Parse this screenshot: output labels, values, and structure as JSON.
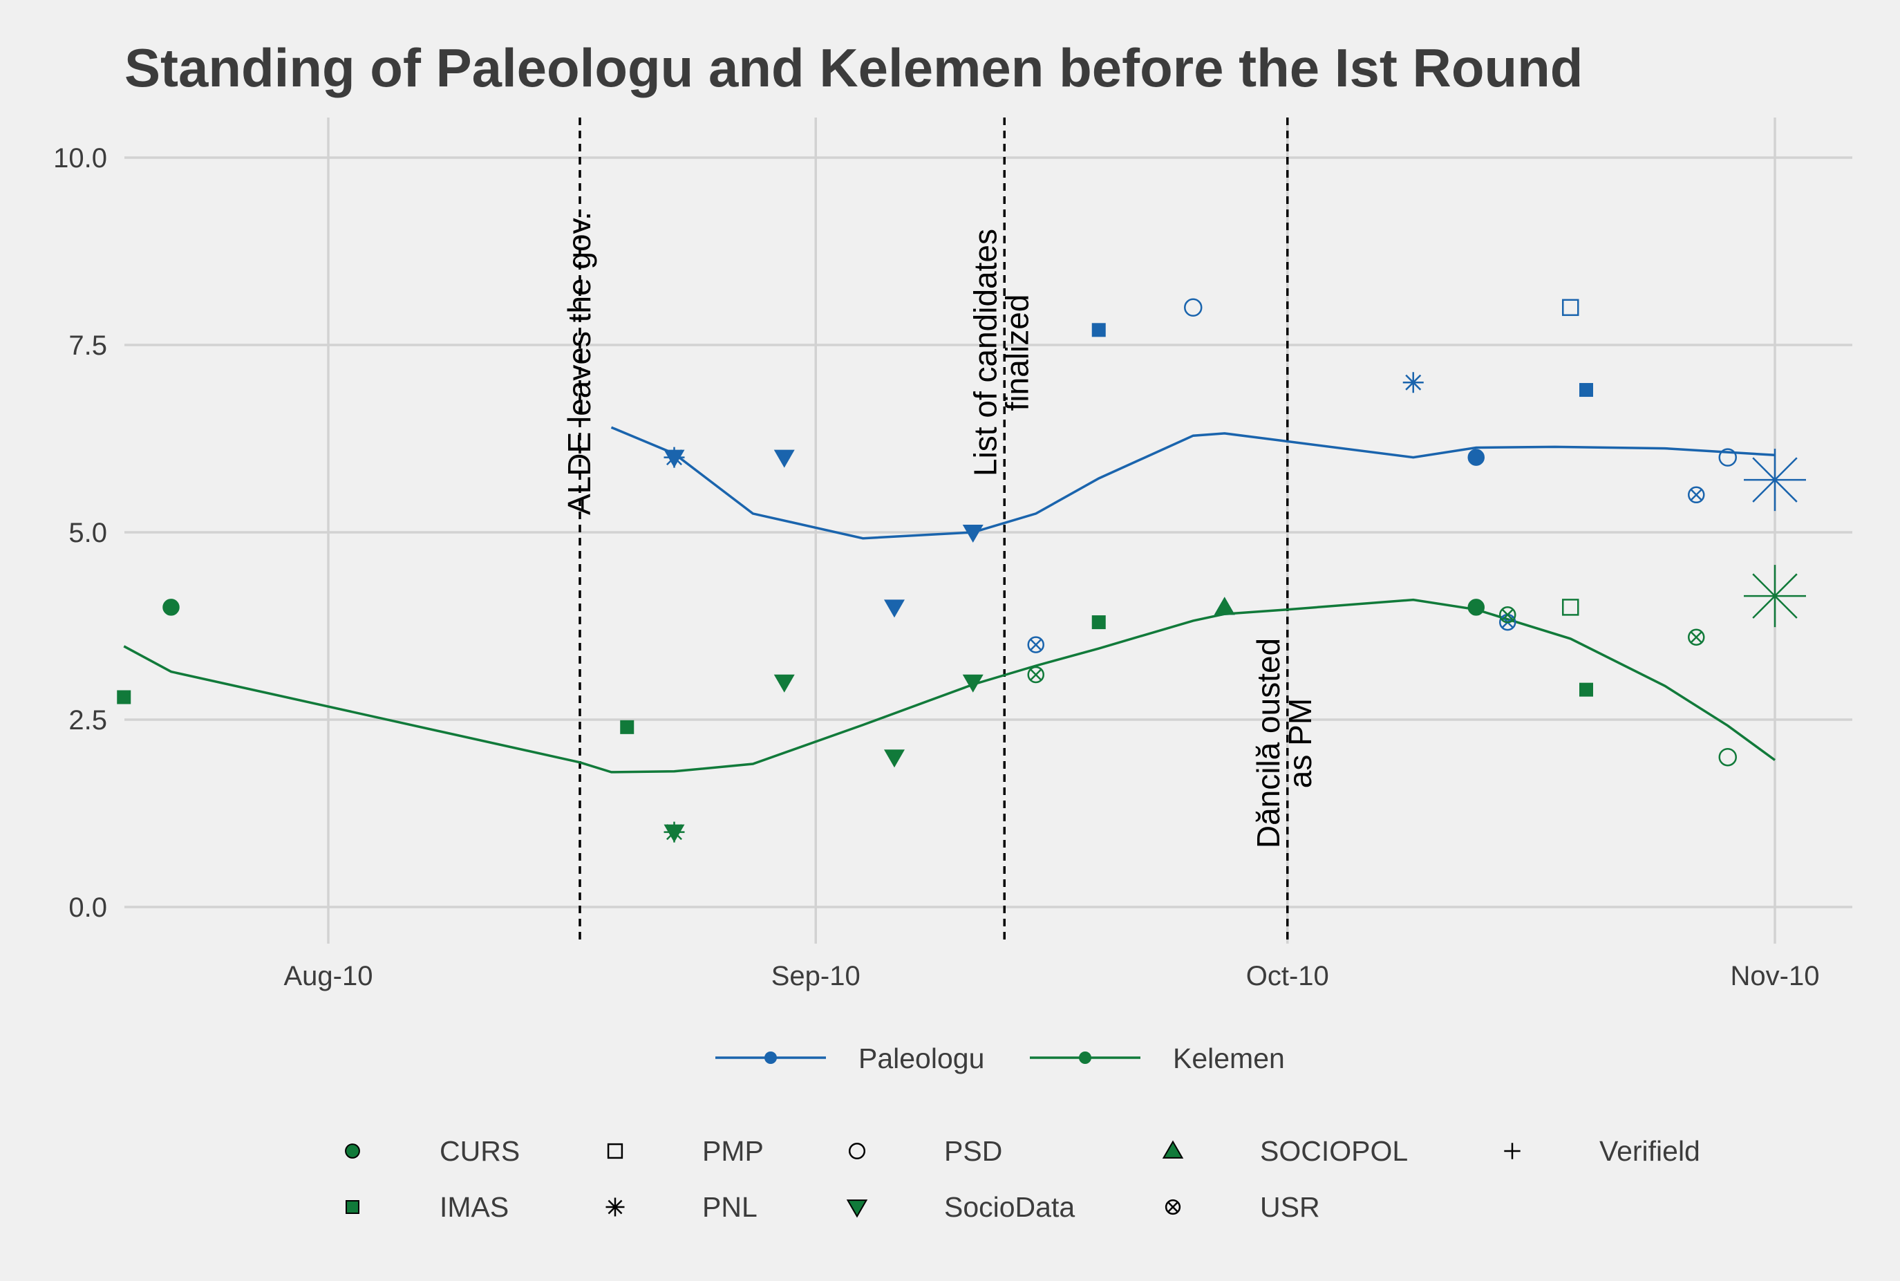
{
  "chart_data": {
    "type": "scatter",
    "title": "Standing of Paleologu and Kelemen before the Ist Round",
    "xlabel": "",
    "ylabel": "",
    "ylim": [
      0,
      10
    ],
    "y_ticks": [
      0.0,
      2.5,
      5.0,
      7.5,
      10.0
    ],
    "y_tick_labels": [
      "0.0",
      "2.5",
      "5.0",
      "7.5",
      "10.0"
    ],
    "x_ticks": [
      "2019-08-10",
      "2019-09-10",
      "2019-10-10",
      "2019-11-10"
    ],
    "x_tick_labels": [
      "Aug-10",
      "Sep-10",
      "Oct-10",
      "Nov-10"
    ],
    "grid": true,
    "legend_position": "bottom",
    "annotations": [
      {
        "date": "2019-08-26",
        "label": "ALDE leaves the gov."
      },
      {
        "date": "2019-09-22",
        "label": "List of candidates\nfinalized"
      },
      {
        "date": "2019-10-10",
        "label": "Dăncilă ousted\nas PM"
      }
    ],
    "candidates": [
      {
        "name": "Paleologu",
        "color": "#1a64ad"
      },
      {
        "name": "Kelemen",
        "color": "#117a3a"
      }
    ],
    "pollsters": [
      {
        "name": "CURS",
        "shape": "circle-filled"
      },
      {
        "name": "IMAS",
        "shape": "square-filled"
      },
      {
        "name": "PMP",
        "shape": "square-open"
      },
      {
        "name": "PNL",
        "shape": "asterisk"
      },
      {
        "name": "PSD",
        "shape": "circle-open"
      },
      {
        "name": "SocioData",
        "shape": "triangle-down-filled"
      },
      {
        "name": "SOCIOPOL",
        "shape": "triangle-up-filled"
      },
      {
        "name": "USR",
        "shape": "circle-cross"
      },
      {
        "name": "Verifield",
        "shape": "plus"
      }
    ],
    "series": [
      {
        "name": "Paleologu",
        "smooth": [
          [
            "2019-08-28",
            6.4
          ],
          [
            "2019-09-01",
            6.05
          ],
          [
            "2019-09-06",
            5.25
          ],
          [
            "2019-09-13",
            4.92
          ],
          [
            "2019-09-20",
            5.0
          ],
          [
            "2019-09-24",
            5.25
          ],
          [
            "2019-09-28",
            5.72
          ],
          [
            "2019-10-04",
            6.29
          ],
          [
            "2019-10-06",
            6.32
          ],
          [
            "2019-10-18",
            6.0
          ],
          [
            "2019-10-22",
            6.13
          ],
          [
            "2019-10-27",
            6.14
          ],
          [
            "2019-11-03",
            6.12
          ],
          [
            "2019-11-10",
            6.03
          ]
        ],
        "points": [
          {
            "date": "2019-09-01",
            "value": 6.0,
            "pollster": "PNL"
          },
          {
            "date": "2019-09-01",
            "value": 6.0,
            "pollster": "SocioData"
          },
          {
            "date": "2019-09-08",
            "value": 6.0,
            "pollster": "SocioData"
          },
          {
            "date": "2019-09-15",
            "value": 4.0,
            "pollster": "SocioData"
          },
          {
            "date": "2019-09-20",
            "value": 5.0,
            "pollster": "SocioData"
          },
          {
            "date": "2019-09-24",
            "value": 3.5,
            "pollster": "USR"
          },
          {
            "date": "2019-09-28",
            "value": 7.7,
            "pollster": "IMAS"
          },
          {
            "date": "2019-10-04",
            "value": 8.0,
            "pollster": "PSD"
          },
          {
            "date": "2019-10-06",
            "value": 4.0,
            "pollster": "SOCIOPOL"
          },
          {
            "date": "2019-10-18",
            "value": 7.0,
            "pollster": "PNL"
          },
          {
            "date": "2019-10-22",
            "value": 6.0,
            "pollster": "CURS"
          },
          {
            "date": "2019-10-24",
            "value": 3.8,
            "pollster": "USR"
          },
          {
            "date": "2019-10-28",
            "value": 8.0,
            "pollster": "PMP"
          },
          {
            "date": "2019-10-29",
            "value": 6.9,
            "pollster": "IMAS"
          },
          {
            "date": "2019-11-05",
            "value": 5.5,
            "pollster": "USR"
          },
          {
            "date": "2019-11-07",
            "value": 6.0,
            "pollster": "PSD"
          }
        ],
        "election_marker": {
          "date": "2019-11-10",
          "value": 5.7
        }
      },
      {
        "name": "Kelemen",
        "smooth": [
          [
            "2019-07-28",
            3.48
          ],
          [
            "2019-07-31",
            3.14
          ],
          [
            "2019-08-26",
            1.93
          ],
          [
            "2019-08-28",
            1.8
          ],
          [
            "2019-09-01",
            1.81
          ],
          [
            "2019-09-06",
            1.91
          ],
          [
            "2019-09-13",
            2.43
          ],
          [
            "2019-09-20",
            2.97
          ],
          [
            "2019-09-24",
            3.22
          ],
          [
            "2019-09-28",
            3.45
          ],
          [
            "2019-10-04",
            3.82
          ],
          [
            "2019-10-06",
            3.91
          ],
          [
            "2019-10-10",
            3.97
          ],
          [
            "2019-10-18",
            4.1
          ],
          [
            "2019-10-22",
            3.97
          ],
          [
            "2019-10-28",
            3.58
          ],
          [
            "2019-11-03",
            2.95
          ],
          [
            "2019-11-07",
            2.42
          ],
          [
            "2019-11-10",
            1.96
          ]
        ],
        "points": [
          {
            "date": "2019-07-28",
            "value": 2.8,
            "pollster": "IMAS"
          },
          {
            "date": "2019-07-31",
            "value": 4.0,
            "pollster": "CURS"
          },
          {
            "date": "2019-08-29",
            "value": 2.4,
            "pollster": "IMAS"
          },
          {
            "date": "2019-09-01",
            "value": 1.0,
            "pollster": "PNL"
          },
          {
            "date": "2019-09-01",
            "value": 1.0,
            "pollster": "SocioData"
          },
          {
            "date": "2019-09-08",
            "value": 3.0,
            "pollster": "SocioData"
          },
          {
            "date": "2019-09-15",
            "value": 2.0,
            "pollster": "SocioData"
          },
          {
            "date": "2019-09-20",
            "value": 3.0,
            "pollster": "SocioData"
          },
          {
            "date": "2019-09-24",
            "value": 3.1,
            "pollster": "USR"
          },
          {
            "date": "2019-09-28",
            "value": 3.8,
            "pollster": "IMAS"
          },
          {
            "date": "2019-10-06",
            "value": 4.0,
            "pollster": "SOCIOPOL"
          },
          {
            "date": "2019-10-22",
            "value": 4.0,
            "pollster": "CURS"
          },
          {
            "date": "2019-10-24",
            "value": 3.9,
            "pollster": "USR"
          },
          {
            "date": "2019-10-28",
            "value": 4.0,
            "pollster": "PMP"
          },
          {
            "date": "2019-10-29",
            "value": 2.9,
            "pollster": "IMAS"
          },
          {
            "date": "2019-11-05",
            "value": 3.6,
            "pollster": "USR"
          },
          {
            "date": "2019-11-07",
            "value": 2.0,
            "pollster": "PSD"
          }
        ],
        "election_marker": {
          "date": "2019-11-10",
          "value": 4.15
        }
      }
    ]
  }
}
